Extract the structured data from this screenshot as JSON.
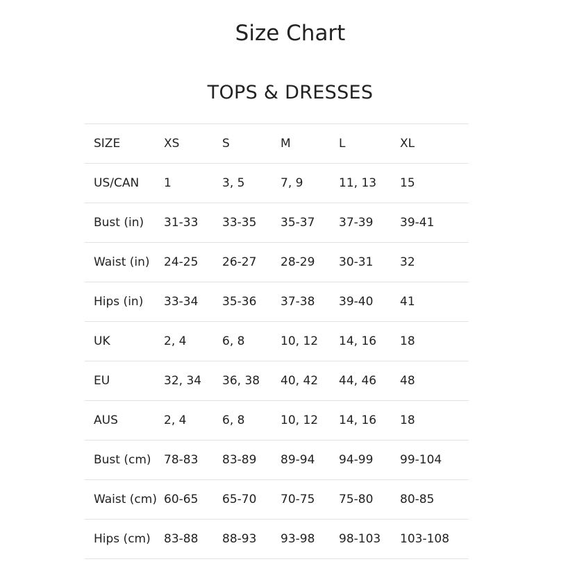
{
  "title": "Size Chart",
  "section_title": "TOPS & DRESSES",
  "table": {
    "rows": [
      [
        "SIZE",
        "XS",
        "S",
        "M",
        "L",
        "XL"
      ],
      [
        "US/CAN",
        "1",
        "3, 5",
        "7, 9",
        "11, 13",
        "15"
      ],
      [
        "Bust (in)",
        "31-33",
        "33-35",
        "35-37",
        "37-39",
        "39-41"
      ],
      [
        "Waist (in)",
        "24-25",
        "26-27",
        "28-29",
        "30-31",
        "32"
      ],
      [
        "Hips (in)",
        "33-34",
        "35-36",
        "37-38",
        "39-40",
        "41"
      ],
      [
        "UK",
        "2, 4",
        "6, 8",
        "10, 12",
        "14, 16",
        "18"
      ],
      [
        "EU",
        "32, 34",
        "36, 38",
        "40, 42",
        "44, 46",
        "48"
      ],
      [
        "AUS",
        "2, 4",
        "6, 8",
        "10, 12",
        "14, 16",
        "18"
      ],
      [
        "Bust (cm)",
        "78-83",
        "83-89",
        "89-94",
        "94-99",
        "99-104"
      ],
      [
        "Waist (cm)",
        "60-65",
        "65-70",
        "70-75",
        "75-80",
        "80-85"
      ],
      [
        "Hips (cm)",
        "83-88",
        "88-93",
        "93-98",
        "98-103",
        "103-108"
      ]
    ]
  }
}
